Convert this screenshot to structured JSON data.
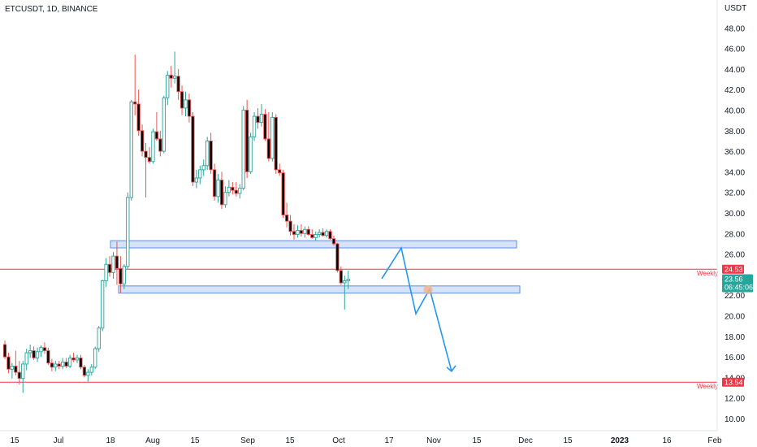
{
  "header": {
    "title": "ETCUSDT, 1D, BINANCE"
  },
  "colors": {
    "up": "#26a69a",
    "down": "#ef5350",
    "candle_body_up": "#ffffff",
    "candle_body_down": "#000000",
    "zone_fill": "#c7d8f5",
    "zone_stroke": "#5b8ee6",
    "arrow": "#2196f3",
    "level": "#f23645",
    "marker": "#f5b48c",
    "price_tag": "#26a69a"
  },
  "price_axis": {
    "currency": "USDT",
    "ticks": [
      "48.00",
      "46.00",
      "44.00",
      "42.00",
      "40.00",
      "38.00",
      "36.00",
      "34.00",
      "32.00",
      "30.00",
      "28.00",
      "26.00",
      "22.00",
      "20.00",
      "18.00",
      "16.00",
      "14.00",
      "12.00",
      "10.00"
    ],
    "current_price": "23.56",
    "countdown": "06:45:06"
  },
  "levels": [
    {
      "label": "Weekly",
      "value": "24.53",
      "price": 24.53
    },
    {
      "label": "Weekly",
      "value": "13.54",
      "price": 13.54
    }
  ],
  "time_axis": {
    "ticks": [
      "15",
      "Jul",
      "18",
      "Aug",
      "15",
      "Sep",
      "15",
      "Oct",
      "17",
      "Nov",
      "15",
      "Dec",
      "15",
      "2023",
      "16",
      "Feb"
    ]
  },
  "chart_data": {
    "type": "candlestick",
    "title": "ETCUSDT, 1D, BINANCE",
    "ylabel": "USDT",
    "ylim": [
      9,
      50
    ],
    "xlabel": "",
    "x_ticks": [
      "15",
      "Jul",
      "18",
      "Aug",
      "15",
      "Sep",
      "15",
      "Oct",
      "17",
      "Nov",
      "15",
      "Dec",
      "15",
      "2023",
      "16",
      "Feb"
    ],
    "series": [
      {
        "ohlc": [
          [
            17.2,
            17.6,
            15.8,
            16.0
          ],
          [
            16.0,
            16.4,
            14.4,
            14.8
          ],
          [
            14.8,
            15.4,
            13.9,
            15.1
          ],
          [
            15.1,
            16.6,
            14.2,
            14.5
          ],
          [
            14.5,
            15.6,
            13.3,
            13.9
          ],
          [
            13.9,
            15.6,
            12.5,
            15.3
          ],
          [
            15.3,
            16.8,
            14.7,
            16.4
          ],
          [
            16.4,
            17.2,
            15.9,
            16.6
          ],
          [
            16.6,
            17.0,
            15.7,
            15.9
          ],
          [
            15.9,
            16.9,
            15.5,
            16.5
          ],
          [
            16.5,
            17.1,
            16.0,
            16.9
          ],
          [
            16.9,
            17.4,
            16.3,
            16.6
          ],
          [
            16.6,
            16.9,
            15.2,
            15.4
          ],
          [
            15.4,
            15.8,
            14.6,
            15.0
          ],
          [
            15.0,
            15.6,
            14.6,
            15.3
          ],
          [
            15.3,
            15.6,
            14.8,
            15.1
          ],
          [
            15.1,
            15.9,
            14.8,
            15.5
          ],
          [
            15.5,
            15.9,
            14.9,
            15.1
          ],
          [
            15.1,
            16.2,
            14.9,
            15.9
          ],
          [
            15.9,
            16.4,
            15.5,
            15.7
          ],
          [
            15.7,
            16.2,
            15.4,
            15.9
          ],
          [
            15.9,
            16.2,
            14.8,
            15.0
          ],
          [
            15.0,
            15.2,
            14.0,
            14.2
          ],
          [
            14.2,
            14.8,
            13.6,
            14.5
          ],
          [
            14.5,
            15.3,
            14.2,
            15.0
          ],
          [
            15.0,
            17.0,
            14.8,
            16.8
          ],
          [
            16.8,
            19.0,
            16.5,
            18.8
          ],
          [
            18.8,
            23.5,
            18.5,
            23.4
          ],
          [
            23.4,
            25.6,
            22.8,
            25.0
          ],
          [
            25.0,
            25.8,
            23.8,
            24.2
          ],
          [
            24.2,
            26.2,
            23.6,
            25.8
          ],
          [
            25.8,
            27.2,
            23.0,
            24.6
          ],
          [
            24.6,
            25.8,
            22.2,
            23.1
          ],
          [
            23.1,
            25.0,
            22.6,
            24.8
          ],
          [
            24.8,
            32.0,
            24.5,
            31.5
          ],
          [
            31.5,
            41.0,
            31.2,
            40.8
          ],
          [
            40.8,
            45.4,
            39.5,
            40.6
          ],
          [
            40.6,
            42.0,
            37.5,
            38.0
          ],
          [
            38.0,
            38.6,
            35.5,
            36.0
          ],
          [
            36.0,
            36.8,
            31.5,
            35.4
          ],
          [
            35.4,
            36.4,
            34.8,
            35.0
          ],
          [
            35.0,
            38.2,
            34.8,
            37.9
          ],
          [
            37.9,
            39.8,
            37.0,
            37.2
          ],
          [
            37.2,
            38.0,
            35.5,
            36.0
          ],
          [
            36.0,
            41.4,
            35.8,
            41.2
          ],
          [
            41.2,
            43.8,
            40.5,
            43.4
          ],
          [
            43.4,
            44.3,
            42.2,
            43.1
          ],
          [
            43.1,
            45.7,
            42.6,
            43.3
          ],
          [
            43.3,
            44.0,
            41.0,
            41.8
          ],
          [
            41.8,
            42.4,
            39.5,
            40.2
          ],
          [
            40.2,
            41.8,
            39.4,
            41.0
          ],
          [
            41.0,
            41.6,
            38.8,
            39.4
          ],
          [
            39.4,
            39.8,
            32.6,
            33.0
          ],
          [
            33.0,
            34.2,
            32.4,
            33.4
          ],
          [
            33.4,
            34.6,
            32.8,
            34.2
          ],
          [
            34.2,
            35.2,
            33.6,
            34.6
          ],
          [
            34.6,
            37.4,
            34.2,
            37.0
          ],
          [
            37.0,
            37.8,
            33.8,
            34.2
          ],
          [
            34.2,
            34.8,
            31.2,
            31.6
          ],
          [
            31.6,
            33.8,
            31.0,
            33.2
          ],
          [
            33.2,
            34.0,
            30.4,
            30.8
          ],
          [
            30.8,
            32.6,
            30.5,
            32.0
          ],
          [
            32.0,
            33.2,
            31.6,
            32.5
          ],
          [
            32.5,
            33.0,
            31.8,
            32.2
          ],
          [
            32.2,
            33.0,
            31.6,
            31.9
          ],
          [
            31.9,
            32.8,
            31.4,
            32.4
          ],
          [
            32.4,
            40.4,
            32.2,
            40.0
          ],
          [
            40.0,
            41.0,
            33.4,
            34.0
          ],
          [
            34.0,
            37.8,
            33.8,
            37.4
          ],
          [
            37.4,
            39.8,
            37.0,
            39.4
          ],
          [
            39.4,
            40.2,
            38.2,
            38.8
          ],
          [
            38.8,
            40.6,
            38.4,
            39.6
          ],
          [
            39.6,
            40.1,
            37.0,
            37.2
          ],
          [
            37.2,
            39.8,
            35.0,
            35.3
          ],
          [
            35.3,
            39.8,
            35.0,
            39.3
          ],
          [
            39.3,
            39.6,
            33.8,
            34.2
          ],
          [
            34.2,
            34.8,
            33.6,
            33.9
          ],
          [
            33.9,
            34.2,
            29.5,
            29.8
          ],
          [
            29.8,
            31.0,
            28.6,
            29.2
          ],
          [
            29.2,
            29.8,
            27.8,
            28.2
          ],
          [
            28.2,
            28.9,
            27.4,
            27.9
          ],
          [
            27.9,
            28.8,
            27.6,
            28.3
          ],
          [
            28.3,
            28.9,
            27.7,
            28.0
          ],
          [
            28.0,
            28.7,
            27.6,
            28.4
          ],
          [
            28.4,
            28.7,
            27.8,
            27.9
          ],
          [
            27.9,
            28.4,
            27.5,
            27.6
          ],
          [
            27.6,
            28.2,
            27.3,
            27.9
          ],
          [
            27.9,
            28.4,
            27.6,
            28.1
          ],
          [
            28.1,
            28.5,
            27.7,
            27.8
          ],
          [
            27.8,
            28.4,
            27.6,
            28.2
          ],
          [
            28.2,
            28.4,
            27.4,
            27.5
          ],
          [
            27.5,
            27.8,
            26.8,
            27.0
          ],
          [
            27.0,
            27.1,
            24.2,
            24.4
          ],
          [
            24.4,
            24.8,
            23.0,
            23.2
          ],
          [
            23.2,
            23.9,
            20.6,
            23.4
          ],
          [
            23.4,
            24.4,
            22.6,
            23.56
          ]
        ]
      }
    ],
    "annotations": [
      {
        "type": "zone",
        "name": "supply-zone",
        "from": 26.6,
        "to": 27.3
      },
      {
        "type": "zone",
        "name": "demand-zone",
        "from": 22.2,
        "to": 22.9
      },
      {
        "type": "hline",
        "label": "Weekly",
        "value": 24.53
      },
      {
        "type": "hline",
        "label": "Weekly",
        "value": 13.54
      },
      {
        "type": "projection-path",
        "prices": [
          23.6,
          26.6,
          20.2,
          22.6,
          14.6
        ]
      }
    ]
  }
}
